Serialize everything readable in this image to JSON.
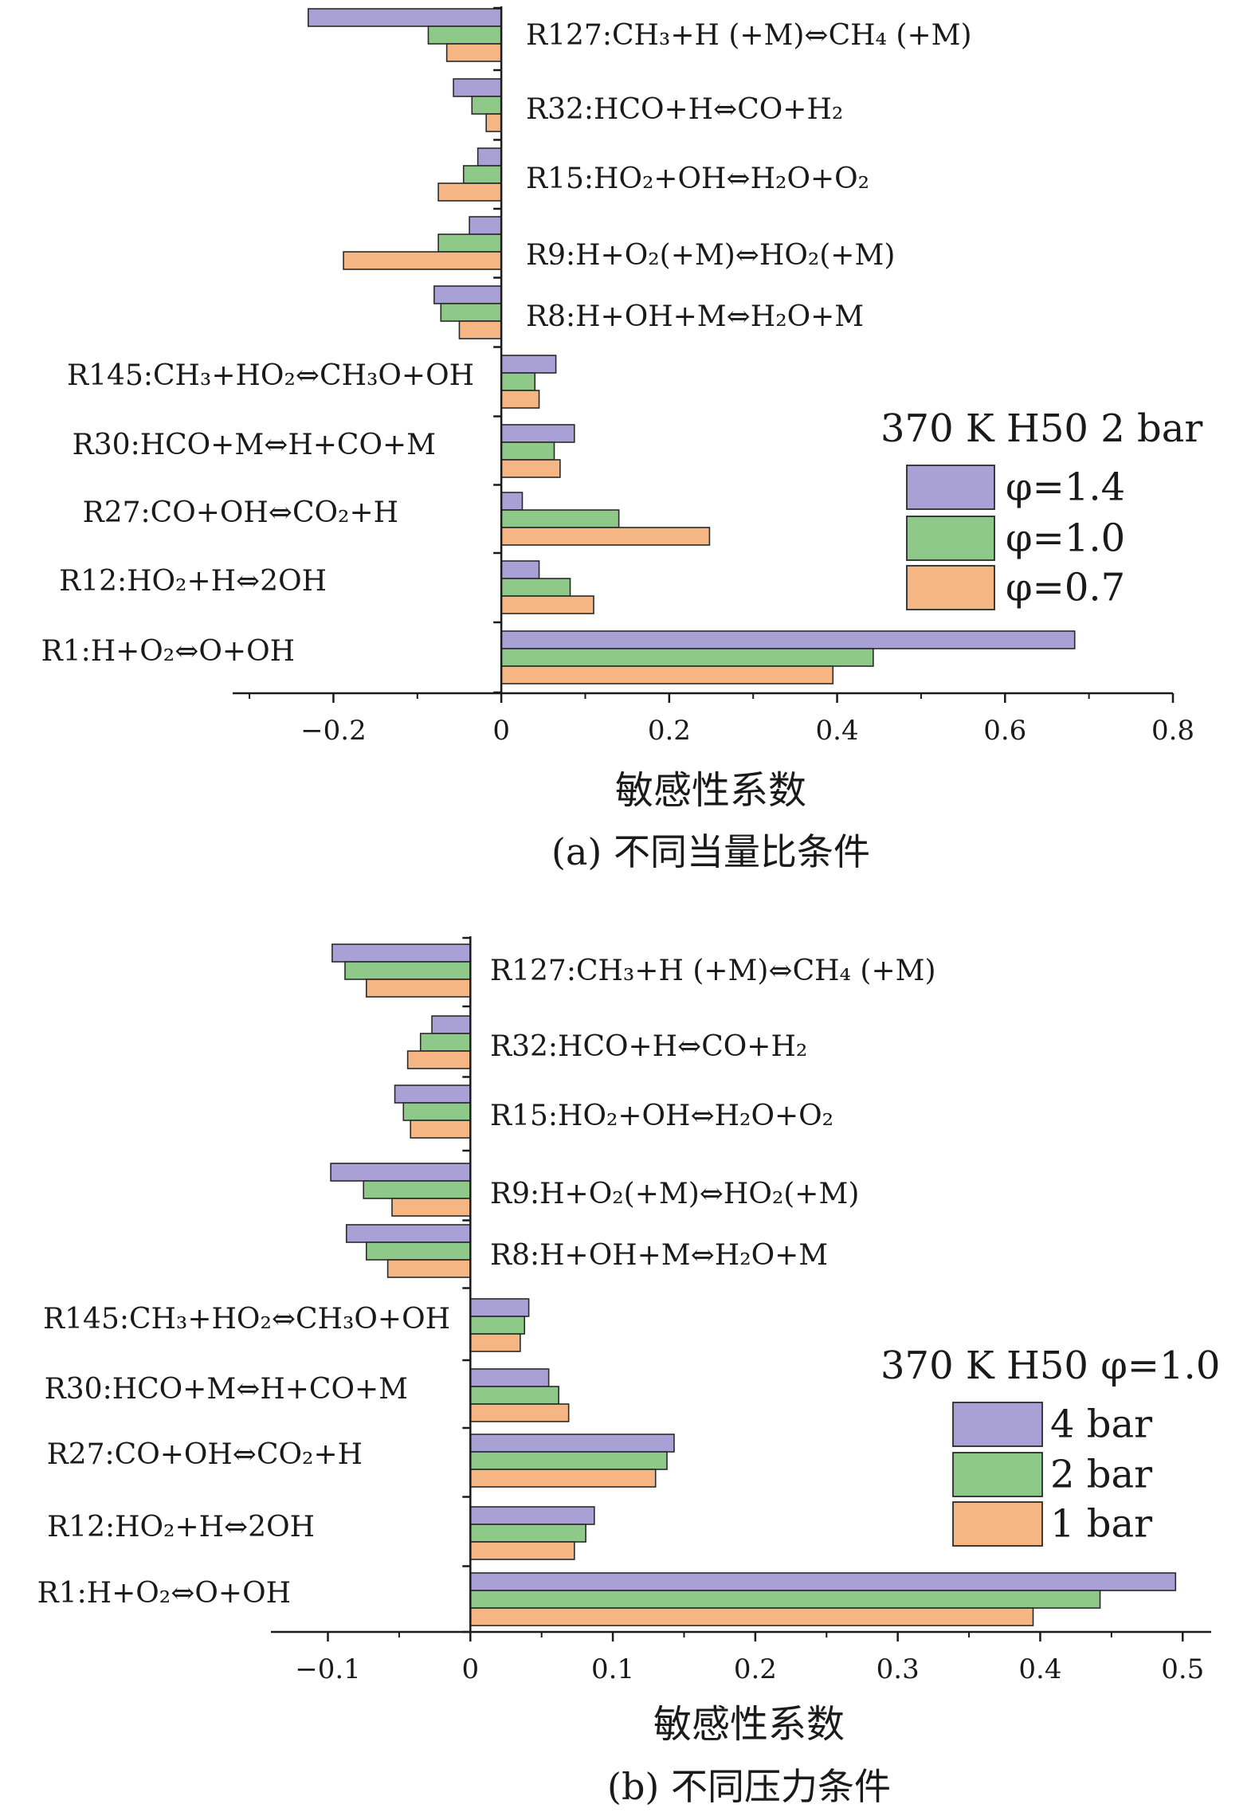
{
  "chart_data": [
    {
      "type": "bar",
      "orientation": "horizontal",
      "categories": [
        "R127:CH₃+H (+M)⇔CH₄ (+M)",
        "R32:HCO+H⇔CO+H₂",
        "R15:HO₂+OH⇔H₂O+O₂",
        "R9:H+O₂(+M)⇔HO₂(+M)",
        "R8:H+OH+M⇔H₂O+M",
        "R145:CH₃+HO₂⇔CH₃O+OH",
        "R30:HCO+M⇔H+CO+M",
        "R27:CO+OH⇔CO₂+H",
        "R12:HO₂+H⇔2OH",
        "R1:H+O₂⇔O+OH"
      ],
      "series": [
        {
          "name": "φ=1.4",
          "color": "#a9a0d6",
          "values": [
            -0.23,
            -0.057,
            -0.028,
            -0.038,
            -0.08,
            0.065,
            0.087,
            0.025,
            0.045,
            0.683
          ]
        },
        {
          "name": "φ=1.0",
          "color": "#8fc98a",
          "values": [
            -0.087,
            -0.035,
            -0.045,
            -0.075,
            -0.072,
            0.04,
            0.063,
            0.14,
            0.082,
            0.443
          ]
        },
        {
          "name": "φ=0.7",
          "color": "#f6b684",
          "values": [
            -0.065,
            -0.018,
            -0.075,
            -0.188,
            -0.05,
            0.045,
            0.07,
            0.248,
            0.11,
            0.395
          ]
        }
      ],
      "xlabel": "敏感性系数",
      "xlim": [
        -0.32,
        0.8
      ],
      "xticks": [
        -0.2,
        0,
        0.2,
        0.4,
        0.6,
        0.8
      ],
      "xtick_labels": [
        "−0.2",
        "0",
        "0.2",
        "0.4",
        "0.6",
        "0.8"
      ],
      "legend_title": "370 K H50 2 bar",
      "legend_position": "right",
      "caption": "(a) 不同当量比条件"
    },
    {
      "type": "bar",
      "orientation": "horizontal",
      "categories": [
        "R127:CH₃+H (+M)⇔CH₄ (+M)",
        "R32:HCO+H⇔CO+H₂",
        "R15:HO₂+OH⇔H₂O+O₂",
        "R9:H+O₂(+M)⇔HO₂(+M)",
        "R8:H+OH+M⇔H₂O+M",
        "R145:CH₃+HO₂⇔CH₃O+OH",
        "R30:HCO+M⇔H+CO+M",
        "R27:CO+OH⇔CO₂+H",
        "R12:HO₂+H⇔2OH",
        "R1:H+O₂⇔O+OH"
      ],
      "series": [
        {
          "name": "4 bar",
          "color": "#a9a0d6",
          "values": [
            -0.097,
            -0.027,
            -0.053,
            -0.098,
            -0.087,
            0.041,
            0.055,
            0.143,
            0.087,
            0.495
          ]
        },
        {
          "name": "2 bar",
          "color": "#8fc98a",
          "values": [
            -0.088,
            -0.035,
            -0.047,
            -0.075,
            -0.073,
            0.038,
            0.062,
            0.138,
            0.081,
            0.442
          ]
        },
        {
          "name": "1 bar",
          "color": "#f6b684",
          "values": [
            -0.073,
            -0.044,
            -0.042,
            -0.055,
            -0.058,
            0.035,
            0.069,
            0.13,
            0.073,
            0.395
          ]
        }
      ],
      "xlabel": "敏感性系数",
      "xlim": [
        -0.14,
        0.52
      ],
      "xticks": [
        -0.1,
        0,
        0.1,
        0.2,
        0.3,
        0.4,
        0.5
      ],
      "xtick_labels": [
        "−0.1",
        "0",
        "0.1",
        "0.2",
        "0.3",
        "0.4",
        "0.5"
      ],
      "legend_title": "370 K H50 φ=1.0",
      "legend_position": "right",
      "caption": "(b) 不同压力条件"
    }
  ]
}
